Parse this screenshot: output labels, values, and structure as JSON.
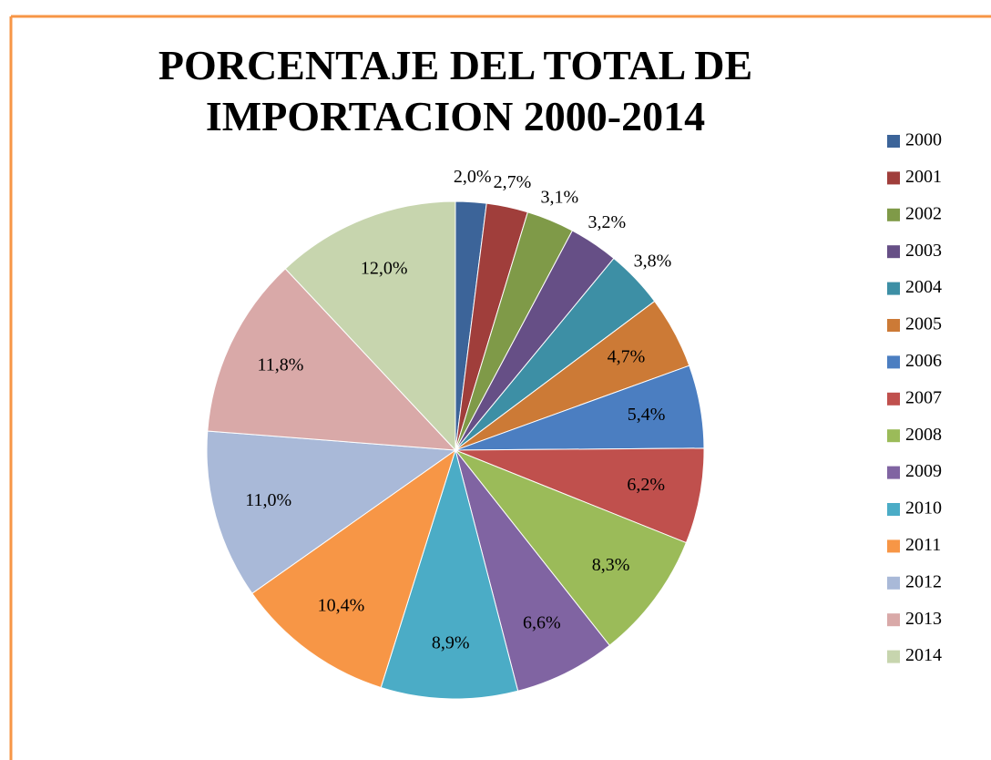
{
  "chart_data": {
    "type": "pie",
    "title": "PORCENTAJE DEL TOTAL DE IMPORTACION 2000-2014",
    "categories": [
      "2000",
      "2001",
      "2002",
      "2003",
      "2004",
      "2005",
      "2006",
      "2007",
      "2008",
      "2009",
      "2010",
      "2011",
      "2012",
      "2013",
      "2014"
    ],
    "values": [
      2.0,
      2.7,
      3.1,
      3.2,
      3.8,
      4.7,
      5.4,
      6.2,
      8.3,
      6.6,
      8.9,
      10.4,
      11.0,
      11.8,
      12.0
    ],
    "value_labels": [
      "2,0%",
      "2,7%",
      "3,1%",
      "3,2%",
      "3,8%",
      "4,7%",
      "5,4%",
      "6,2%",
      "8,3%",
      "6,6%",
      "8,9%",
      "10,4%",
      "11,0%",
      "11,8%",
      "12,0%"
    ],
    "colors": [
      "#3c6499",
      "#a03e3b",
      "#7f9a48",
      "#664f86",
      "#3d8fa5",
      "#cc7a36",
      "#4b7ec1",
      "#c0504d",
      "#9bbb59",
      "#8064a2",
      "#4bacc6",
      "#f79646",
      "#a9b9d8",
      "#d9a9a8",
      "#c7d5ae"
    ],
    "legend": "right"
  }
}
